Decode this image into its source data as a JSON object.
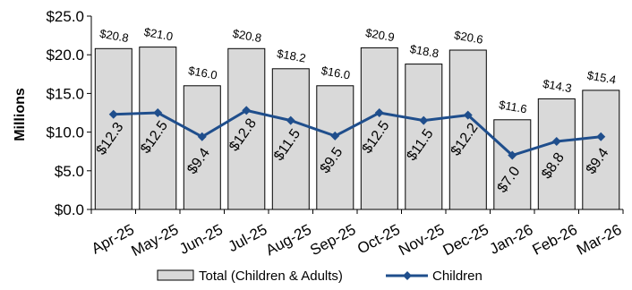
{
  "chart_data": {
    "type": "bar",
    "ylabel": "Millions",
    "ylim": [
      0,
      25
    ],
    "yticks": [
      0,
      5,
      10,
      15,
      20,
      25
    ],
    "ytick_labels": [
      "$0.0",
      "$5.0",
      "$10.0",
      "$15.0",
      "$20.0",
      "$25.0"
    ],
    "categories": [
      "Apr-25",
      "May-25",
      "Jun-25",
      "Jul-25",
      "Aug-25",
      "Sep-25",
      "Oct-25",
      "Nov-25",
      "Dec-25",
      "Jan-26",
      "Feb-26",
      "Mar-26"
    ],
    "series": [
      {
        "name": "Total (Children & Adults)",
        "type": "bar",
        "values": [
          20.8,
          21.0,
          16.0,
          20.8,
          18.2,
          16.0,
          20.9,
          18.8,
          20.6,
          11.6,
          14.3,
          15.4
        ],
        "labels": [
          "$20.8",
          "$21.0",
          "$16.0",
          "$20.8",
          "$18.2",
          "$16.0",
          "$20.9",
          "$18.8",
          "$20.6",
          "$11.6",
          "$14.3",
          "$15.4"
        ],
        "color": "#d9d9d9"
      },
      {
        "name": "Children",
        "type": "line",
        "values": [
          12.3,
          12.5,
          9.4,
          12.8,
          11.5,
          9.5,
          12.5,
          11.5,
          12.2,
          7.0,
          8.8,
          9.4
        ],
        "labels": [
          "$12.3",
          "$12.5",
          "$9.4",
          "$12.8",
          "$11.5",
          "$9.5",
          "$12.5",
          "$11.5",
          "$12.2",
          "$7.0",
          "$8.8",
          "$9.4"
        ],
        "color": "#1f4e8c"
      }
    ],
    "legend": "bottom",
    "grid": false
  }
}
